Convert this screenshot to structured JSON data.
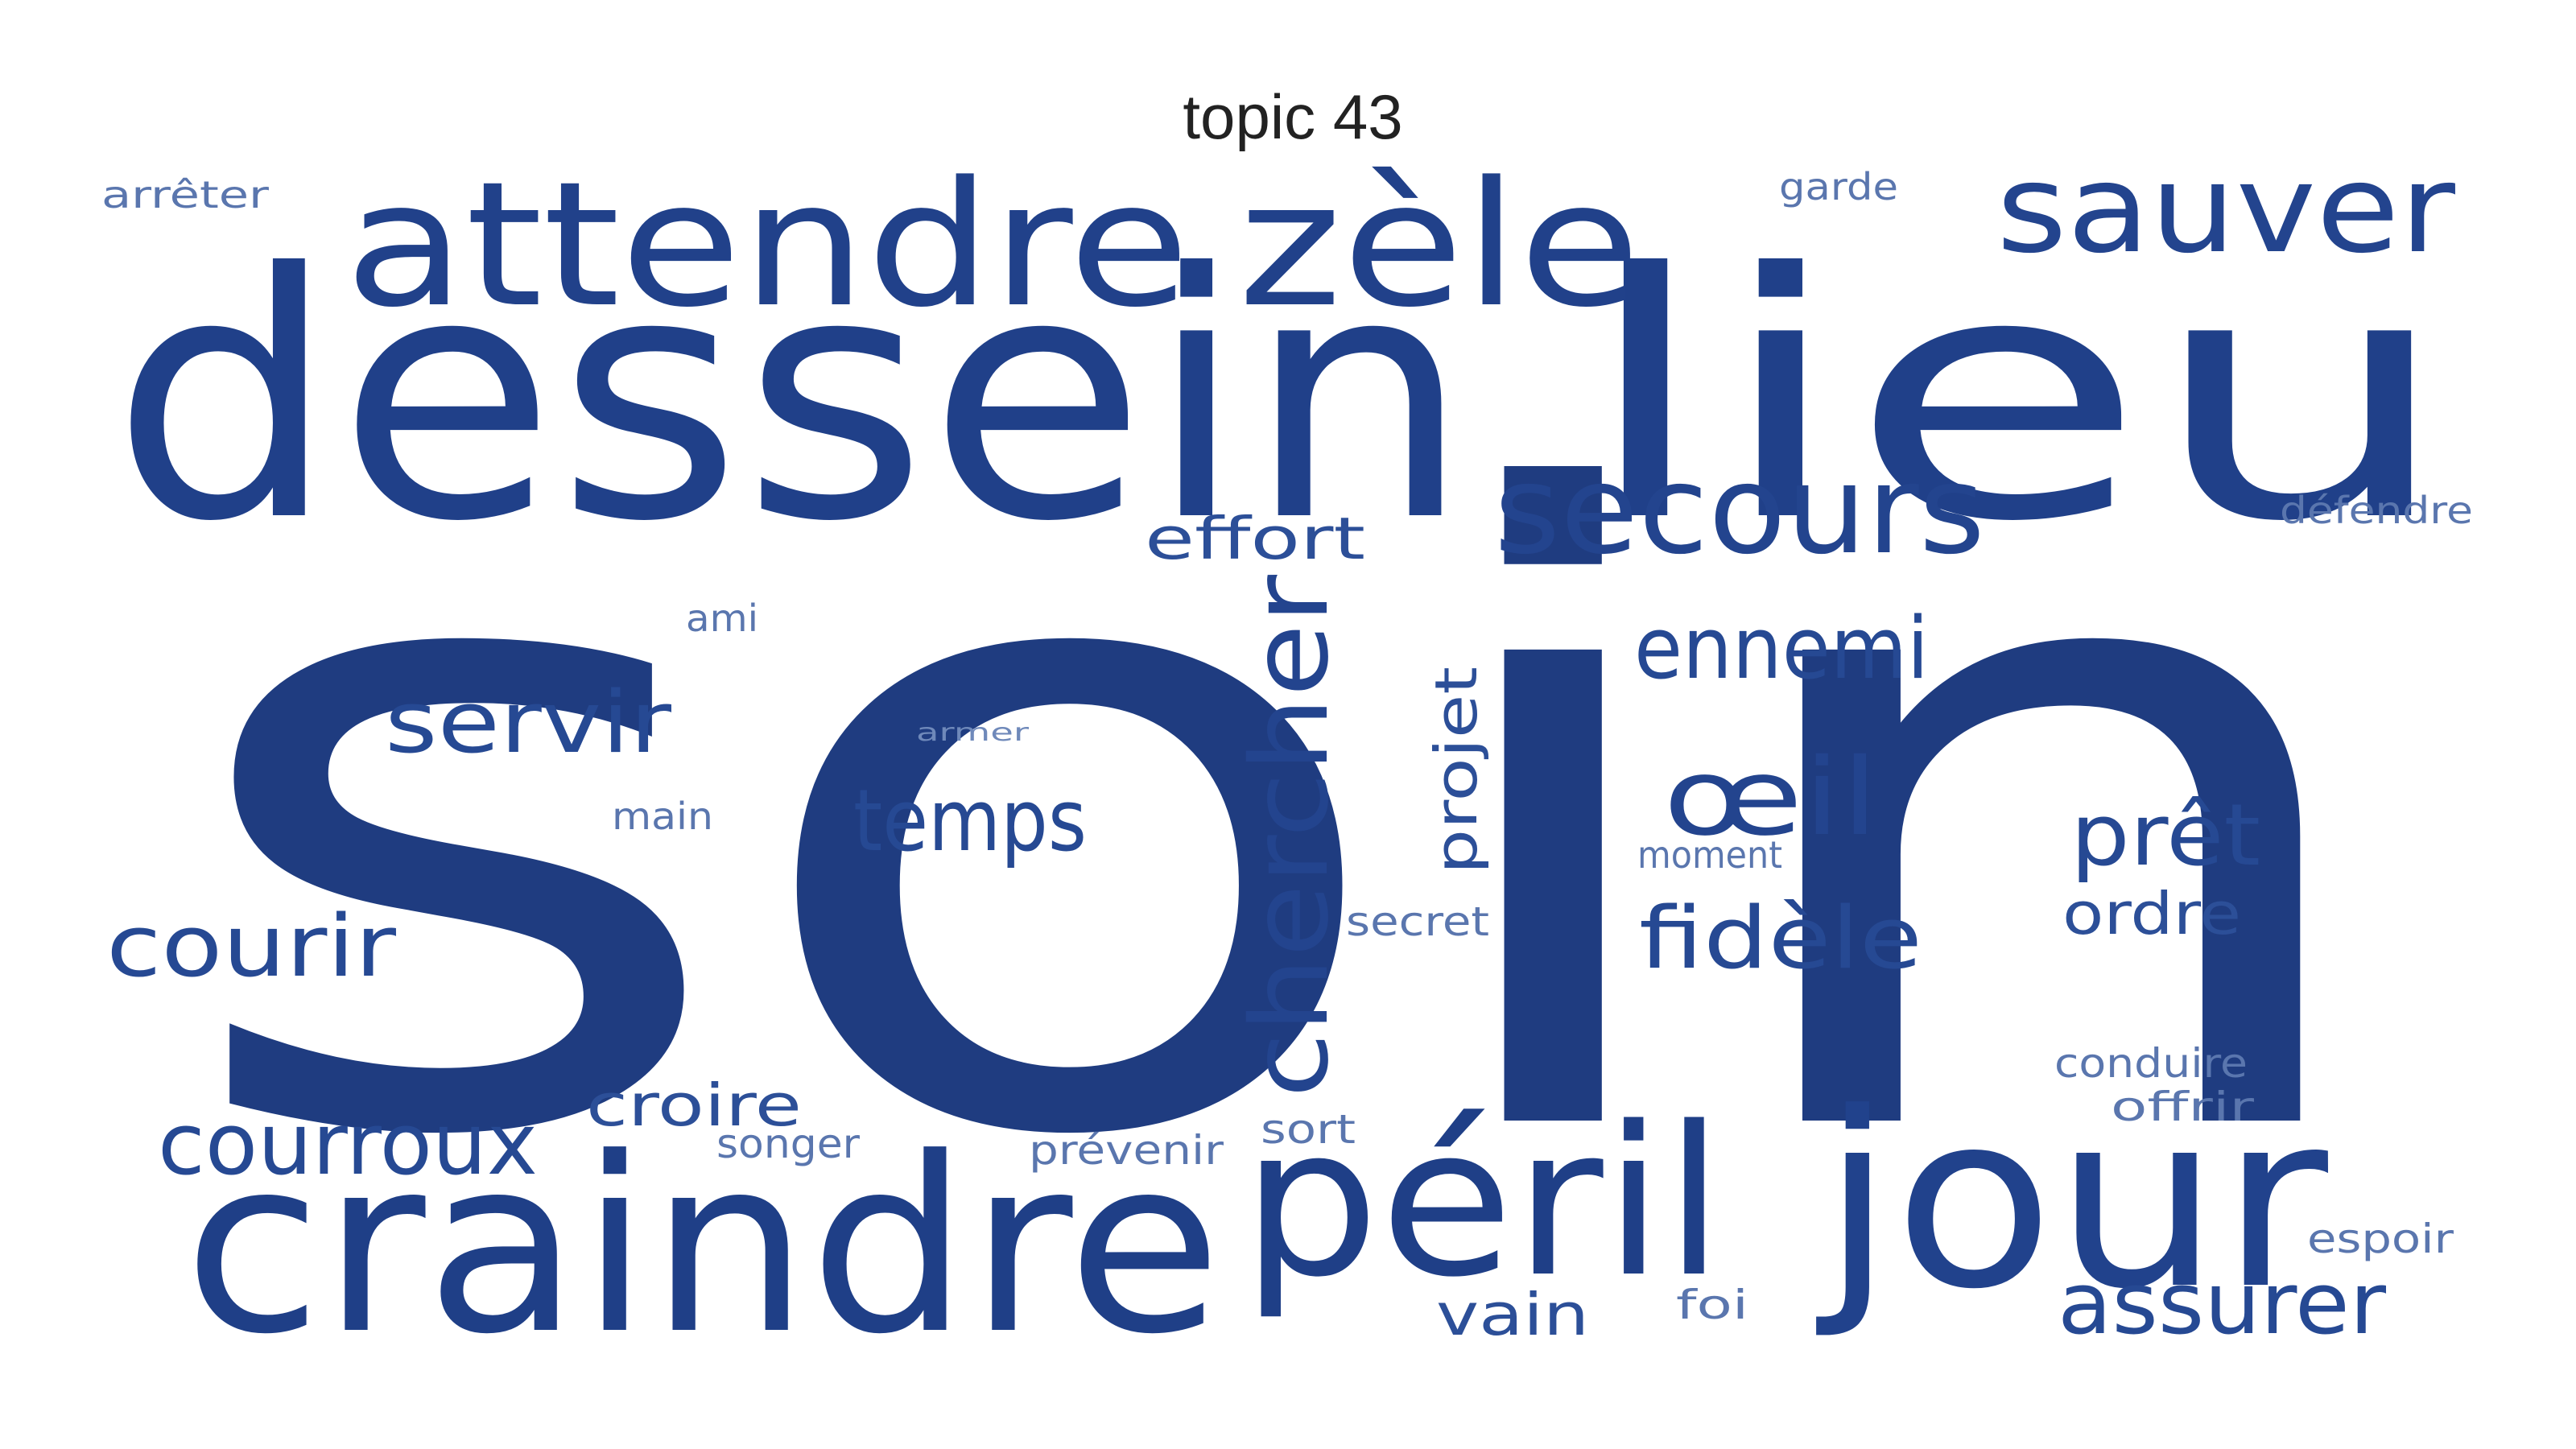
{
  "title": "topic 43",
  "colors": {
    "background": "#ffffff",
    "word": "#1f3f87",
    "word_light": "#5a76ae",
    "title": "#222222"
  },
  "words": [
    "soin",
    "dessein",
    "lieu",
    "craindre",
    "péril",
    "jour",
    "attendre",
    "zèle",
    "sauver",
    "secours",
    "chercher",
    "temps",
    "servir",
    "courir",
    "courroux",
    "ennemi",
    "œil",
    "fidèle",
    "prêt",
    "projet",
    "effort",
    "assurer",
    "croire",
    "ordre",
    "vain",
    "songer",
    "prévenir",
    "conduire",
    "offrir",
    "espoir",
    "foi",
    "sort",
    "secret",
    "moment",
    "main",
    "ami",
    "arrêter",
    "garde",
    "défendre",
    "armer"
  ]
}
